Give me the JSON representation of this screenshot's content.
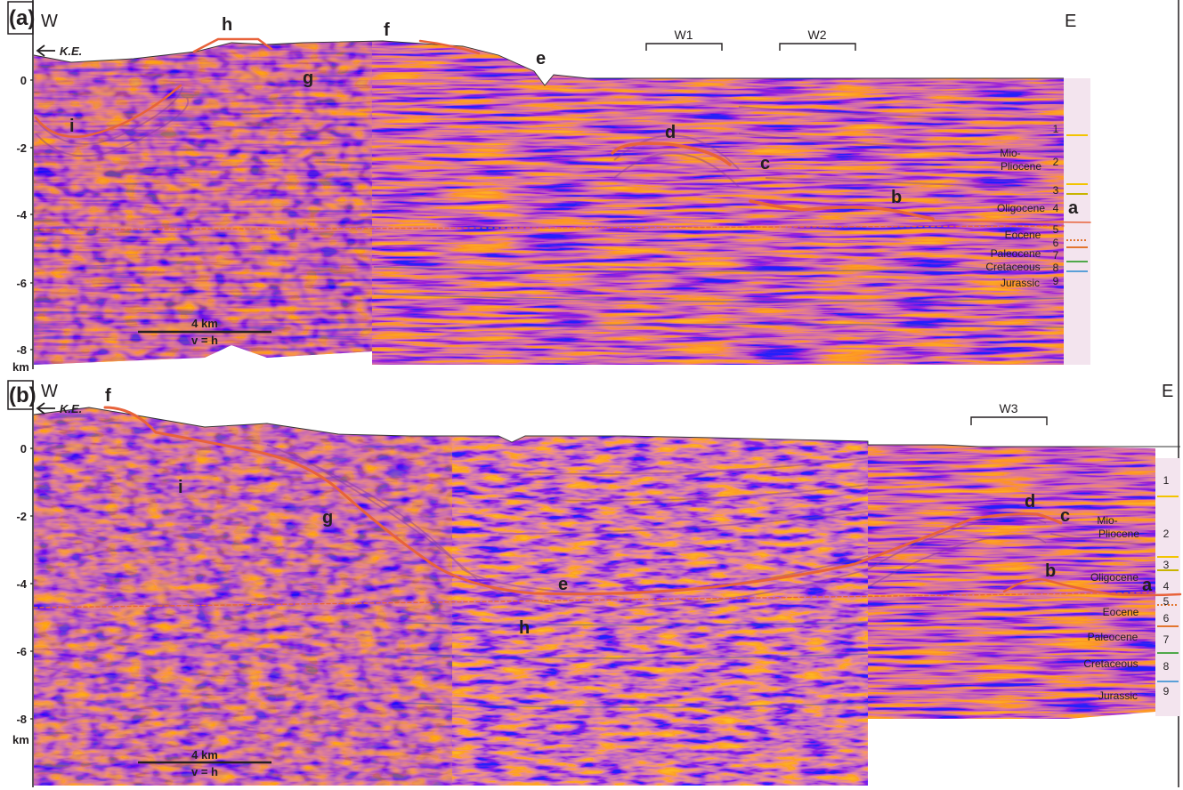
{
  "panels": [
    {
      "label": "(a)",
      "west": "W",
      "east": "E",
      "ke": "K.E.",
      "depth_ticks": [
        "0",
        "-2",
        "-4",
        "-6",
        "-8"
      ],
      "depth_unit": "km",
      "scale": {
        "length": "4 km",
        "ratio": "v = h"
      },
      "markers": [
        "a",
        "b",
        "c",
        "d",
        "e",
        "f",
        "g",
        "h",
        "i"
      ],
      "wells": [
        "W1",
        "W2"
      ],
      "stratigraphy": [
        "Mio-",
        "Pliocene",
        "Oligocene",
        "Eocene",
        "Paleocene",
        "Cretaceous",
        "Jurassic"
      ],
      "units": [
        "1",
        "2",
        "3",
        "4",
        "5",
        "6",
        "7",
        "8",
        "9"
      ]
    },
    {
      "label": "(b)",
      "west": "W",
      "east": "E",
      "ke": "K.E.",
      "depth_ticks": [
        "0",
        "-2",
        "-4",
        "-6",
        "-8"
      ],
      "depth_unit": "km",
      "scale": {
        "length": "4 km",
        "ratio": "v = h"
      },
      "markers": [
        "a",
        "b",
        "c",
        "d",
        "e",
        "f",
        "g",
        "h",
        "i"
      ],
      "wells": [
        "W3"
      ],
      "stratigraphy": [
        "Mio-",
        "Pliocene",
        "Oligocene",
        "Eocene",
        "Paleocene",
        "Cretaceous",
        "Jurassic"
      ],
      "units": [
        "1",
        "2",
        "3",
        "4",
        "5",
        "6",
        "7",
        "8",
        "9"
      ]
    }
  ],
  "colors": {
    "horizon": "#e8623a",
    "seismic_red": "#e04a52",
    "seismic_blue": "#3a48b8",
    "seismic_purple": "#8a3aa0",
    "seismic_background": "#f2dcec",
    "unit_yellow": "#f2c400",
    "unit_orange": "#e2752e",
    "unit_green": "#4fa84a",
    "unit_blue": "#5aa0d8"
  }
}
